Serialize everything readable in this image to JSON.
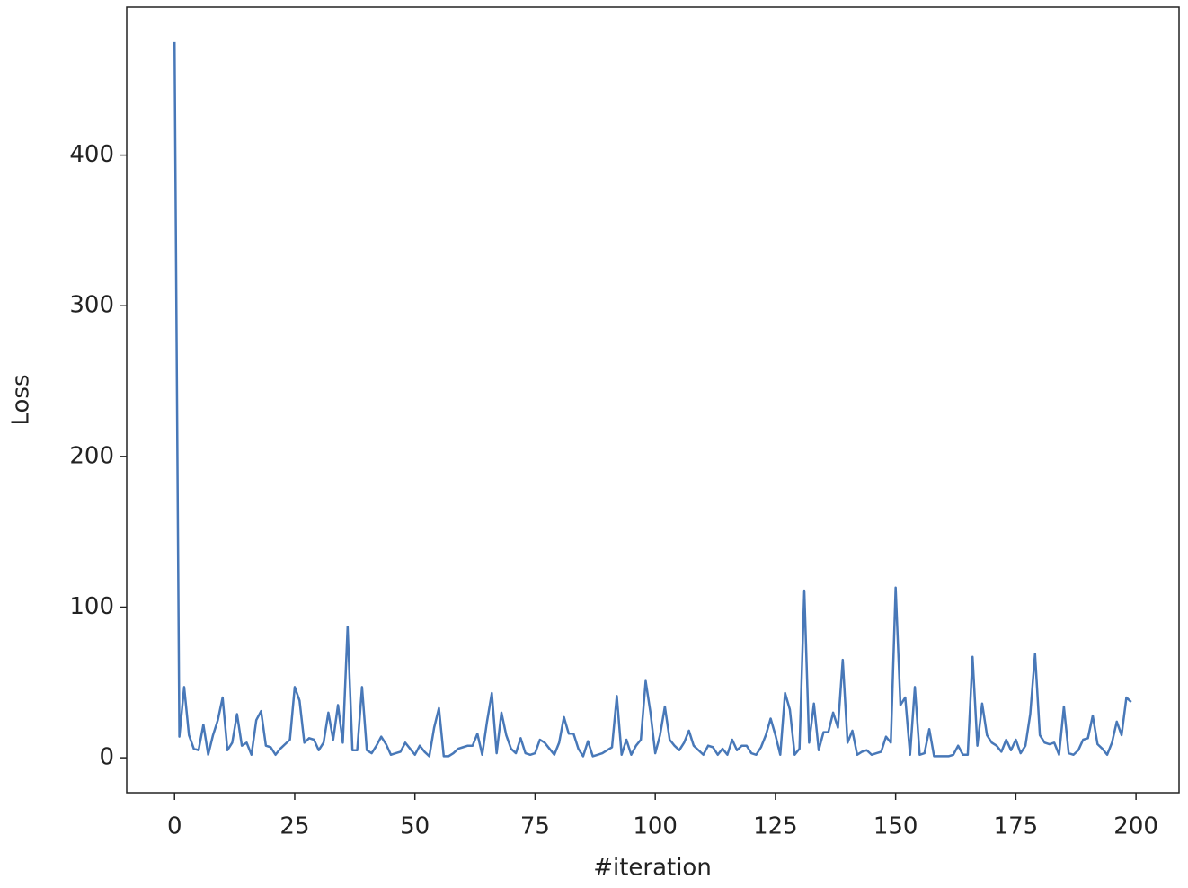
{
  "chart_data": {
    "type": "line",
    "xlabel": "#iteration",
    "ylabel": "Loss",
    "color": "#4878b8",
    "x": [
      0,
      1,
      2,
      3,
      4,
      5,
      6,
      7,
      8,
      9,
      10,
      11,
      12,
      13,
      14,
      15,
      16,
      17,
      18,
      19,
      20,
      21,
      22,
      23,
      24,
      25,
      26,
      27,
      28,
      29,
      30,
      31,
      32,
      33,
      34,
      35,
      36,
      37,
      38,
      39,
      40,
      41,
      42,
      43,
      44,
      45,
      46,
      47,
      48,
      49,
      50,
      51,
      52,
      53,
      54,
      55,
      56,
      57,
      58,
      59,
      60,
      61,
      62,
      63,
      64,
      65,
      66,
      67,
      68,
      69,
      70,
      71,
      72,
      73,
      74,
      75,
      76,
      77,
      78,
      79,
      80,
      81,
      82,
      83,
      84,
      85,
      86,
      87,
      88,
      89,
      90,
      91,
      92,
      93,
      94,
      95,
      96,
      97,
      98,
      99,
      100,
      101,
      102,
      103,
      104,
      105,
      106,
      107,
      108,
      109,
      110,
      111,
      112,
      113,
      114,
      115,
      116,
      117,
      118,
      119,
      120,
      121,
      122,
      123,
      124,
      125,
      126,
      127,
      128,
      129,
      130,
      131,
      132,
      133,
      134,
      135,
      136,
      137,
      138,
      139,
      140,
      141,
      142,
      143,
      144,
      145,
      146,
      147,
      148,
      149,
      150,
      151,
      152,
      153,
      154,
      155,
      156,
      157,
      158,
      159,
      160,
      161,
      162,
      163,
      164,
      165,
      166,
      167,
      168,
      169,
      170,
      171,
      172,
      173,
      174,
      175,
      176,
      177,
      178,
      179,
      180,
      181,
      182,
      183,
      184,
      185,
      186,
      187,
      188,
      189,
      190,
      191,
      192,
      193,
      194,
      195,
      196,
      197,
      198,
      199
    ],
    "values": [
      475,
      14,
      47,
      15,
      6,
      5,
      22,
      2,
      15,
      25,
      40,
      5,
      10,
      29,
      8,
      10,
      2,
      25,
      31,
      8,
      7,
      2,
      6,
      9,
      12,
      47,
      38,
      10,
      13,
      12,
      5,
      10,
      30,
      12,
      35,
      10,
      87,
      5,
      5,
      47,
      5,
      3,
      8,
      14,
      9,
      2,
      3,
      4,
      10,
      6,
      2,
      8,
      4,
      1,
      20,
      33,
      1,
      1,
      3,
      6,
      7,
      8,
      8,
      16,
      2,
      24,
      43,
      3,
      30,
      15,
      6,
      3,
      13,
      3,
      2,
      3,
      12,
      10,
      6,
      2,
      10,
      27,
      16,
      16,
      6,
      1,
      11,
      1,
      2,
      3,
      5,
      7,
      41,
      2,
      12,
      2,
      8,
      12,
      51,
      30,
      3,
      15,
      34,
      12,
      8,
      5,
      10,
      18,
      8,
      5,
      2,
      8,
      7,
      2,
      6,
      2,
      12,
      5,
      8,
      8,
      3,
      2,
      7,
      15,
      26,
      15,
      2,
      43,
      32,
      2,
      6,
      111,
      10,
      36,
      5,
      17,
      17,
      30,
      20,
      65,
      10,
      18,
      2,
      4,
      5,
      2,
      3,
      4,
      14,
      10,
      113,
      35,
      40,
      2,
      47,
      2,
      3,
      19,
      1,
      1,
      1,
      1,
      2,
      8,
      2,
      2,
      67,
      8,
      36,
      15,
      10,
      8,
      4,
      12,
      5,
      12,
      3,
      8,
      29,
      69,
      15,
      10,
      9,
      10,
      2,
      34,
      3,
      2,
      5,
      12,
      13,
      28,
      9,
      6,
      2,
      10,
      24,
      15,
      40,
      37
    ],
    "xlim": [
      -9.95,
      208.95
    ],
    "ylim": [
      -23.2,
      498.2
    ],
    "xticks": [
      0,
      25,
      50,
      75,
      100,
      125,
      150,
      175,
      200
    ],
    "yticks": [
      0,
      100,
      200,
      300,
      400
    ]
  }
}
